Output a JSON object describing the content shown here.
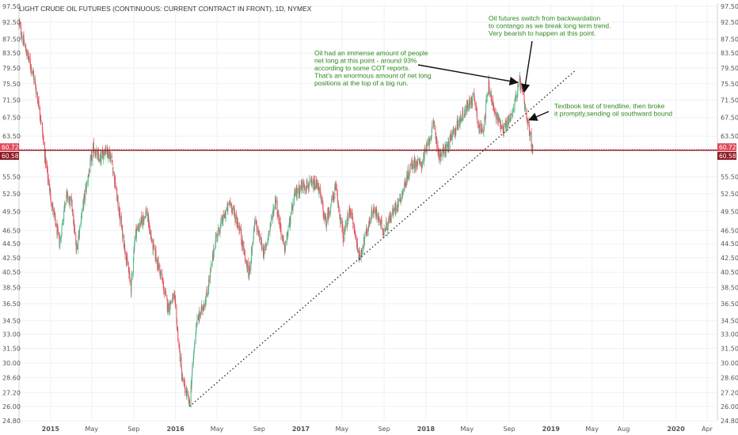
{
  "chart_data": {
    "type": "candlestick",
    "title": "LIGHT CRUDE OIL FUTURES (CONTINUOUS: CURRENT CONTRACT IN FRONT), 1D, NYMEX",
    "y_axis_scale": "log",
    "ylim": [
      24.8,
      98.5
    ],
    "xlim": [
      "2014-10-01",
      "2020-05-01"
    ],
    "y_ticks": [
      "97.50",
      "92.50",
      "87.50",
      "83.50",
      "79.50",
      "75.50",
      "71.50",
      "67.50",
      "63.50",
      "60.72",
      "60.58",
      "55.50",
      "52.50",
      "49.50",
      "46.50",
      "44.50",
      "42.50",
      "40.50",
      "38.50",
      "36.50",
      "34.50",
      "33.00",
      "31.50",
      "30.00",
      "28.60",
      "27.20",
      "26.00",
      "24.80"
    ],
    "x_ticks": [
      {
        "label": "2015",
        "date": "2015-01-01"
      },
      {
        "label": "May",
        "date": "2015-05-01"
      },
      {
        "label": "Sep",
        "date": "2015-09-01"
      },
      {
        "label": "2016",
        "date": "2016-01-01"
      },
      {
        "label": "May",
        "date": "2016-05-01"
      },
      {
        "label": "Sep",
        "date": "2016-09-01"
      },
      {
        "label": "2017",
        "date": "2017-01-01"
      },
      {
        "label": "May",
        "date": "2017-05-01"
      },
      {
        "label": "Sep",
        "date": "2017-09-01"
      },
      {
        "label": "2018",
        "date": "2018-01-01"
      },
      {
        "label": "May",
        "date": "2018-05-01"
      },
      {
        "label": "Sep",
        "date": "2018-09-01"
      },
      {
        "label": "2019",
        "date": "2019-01-01"
      },
      {
        "label": "May",
        "date": "2019-05-01"
      },
      {
        "label": "Aug",
        "date": "2019-08-01"
      },
      {
        "label": "2020",
        "date": "2020-01-01"
      },
      {
        "label": "Apr",
        "date": "2020-04-01"
      }
    ],
    "series": [
      {
        "close_path": [
          [
            "2014-10-01",
            92.0
          ],
          [
            "2014-10-20",
            84.5
          ],
          [
            "2014-11-10",
            78.5
          ],
          [
            "2014-12-01",
            69.0
          ],
          [
            "2014-12-20",
            57.0
          ],
          [
            "2015-01-10",
            49.0
          ],
          [
            "2015-01-28",
            44.5
          ],
          [
            "2015-02-15",
            52.5
          ],
          [
            "2015-03-05",
            50.5
          ],
          [
            "2015-03-17",
            43.5
          ],
          [
            "2015-04-10",
            52.0
          ],
          [
            "2015-05-06",
            61.0
          ],
          [
            "2015-05-25",
            58.5
          ],
          [
            "2015-06-10",
            61.0
          ],
          [
            "2015-06-28",
            59.0
          ],
          [
            "2015-07-20",
            49.5
          ],
          [
            "2015-08-24",
            38.5
          ],
          [
            "2015-09-05",
            46.0
          ],
          [
            "2015-10-08",
            49.5
          ],
          [
            "2015-10-25",
            44.5
          ],
          [
            "2015-11-20",
            40.0
          ],
          [
            "2015-12-10",
            36.0
          ],
          [
            "2015-12-28",
            37.5
          ],
          [
            "2016-01-20",
            28.5
          ],
          [
            "2016-02-11",
            26.2
          ],
          [
            "2016-03-01",
            34.0
          ],
          [
            "2016-04-01",
            37.5
          ],
          [
            "2016-04-28",
            45.5
          ],
          [
            "2016-06-08",
            51.0
          ],
          [
            "2016-07-05",
            47.0
          ],
          [
            "2016-08-02",
            40.0
          ],
          [
            "2016-08-20",
            48.0
          ],
          [
            "2016-09-16",
            43.0
          ],
          [
            "2016-10-19",
            51.5
          ],
          [
            "2016-11-14",
            43.5
          ],
          [
            "2016-12-15",
            52.5
          ],
          [
            "2017-01-06",
            54.0
          ],
          [
            "2017-02-20",
            54.0
          ],
          [
            "2017-03-14",
            47.5
          ],
          [
            "2017-04-12",
            53.5
          ],
          [
            "2017-05-05",
            45.5
          ],
          [
            "2017-05-25",
            50.0
          ],
          [
            "2017-06-21",
            42.5
          ],
          [
            "2017-07-31",
            50.0
          ],
          [
            "2017-08-31",
            46.5
          ],
          [
            "2017-10-20",
            52.0
          ],
          [
            "2017-11-20",
            58.0
          ],
          [
            "2017-12-20",
            58.0
          ],
          [
            "2018-01-25",
            66.0
          ],
          [
            "2018-02-09",
            59.2
          ],
          [
            "2018-03-05",
            61.5
          ],
          [
            "2018-03-28",
            65.0
          ],
          [
            "2018-04-20",
            68.5
          ],
          [
            "2018-05-22",
            72.5
          ],
          [
            "2018-06-05",
            65.0
          ],
          [
            "2018-06-18",
            65.5
          ],
          [
            "2018-07-03",
            75.0
          ],
          [
            "2018-07-20",
            68.5
          ],
          [
            "2018-08-16",
            65.0
          ],
          [
            "2018-09-07",
            67.8
          ],
          [
            "2018-10-03",
            76.4
          ],
          [
            "2018-10-18",
            69.0
          ],
          [
            "2018-11-01",
            63.5
          ],
          [
            "2018-11-09",
            60.6
          ]
        ]
      }
    ],
    "reference_lines": [
      {
        "label": "60.72",
        "value": 60.72,
        "color": "#e04a5a",
        "style": "dotted"
      },
      {
        "label": "60.58",
        "value": 60.58,
        "color": "#8a1c24",
        "style": "solid"
      }
    ],
    "trendline": {
      "from": [
        "2016-02-11",
        26.0
      ],
      "to": [
        "2019-03-15",
        79.0
      ],
      "style": "dotted"
    },
    "annotations": [
      {
        "text_lines": [
          "Oil futures switch from backwardation",
          "to contango as we break long term trend.",
          "Very bearish to happen at this point."
        ],
        "arrow_to": [
          "2018-10-15",
          73.5
        ]
      },
      {
        "text_lines": [
          "Oil had an immense amount of people",
          "net long at this point - around 93%",
          "according to some COT reports.",
          "That's an enormous amount of net long",
          "positions at the top of a big run."
        ],
        "arrow_to": [
          "2018-09-25",
          75.8
        ]
      },
      {
        "text_lines": [
          "Textbook test of trendline, then broke",
          "it promptly,sending oil southward bound"
        ],
        "arrow_to": [
          "2018-10-30",
          67.0
        ]
      }
    ],
    "colors": {
      "up": "#53b987",
      "down": "#eb4d5c",
      "grid": "#eef1f4",
      "annotation": "#2e8b1e"
    }
  }
}
